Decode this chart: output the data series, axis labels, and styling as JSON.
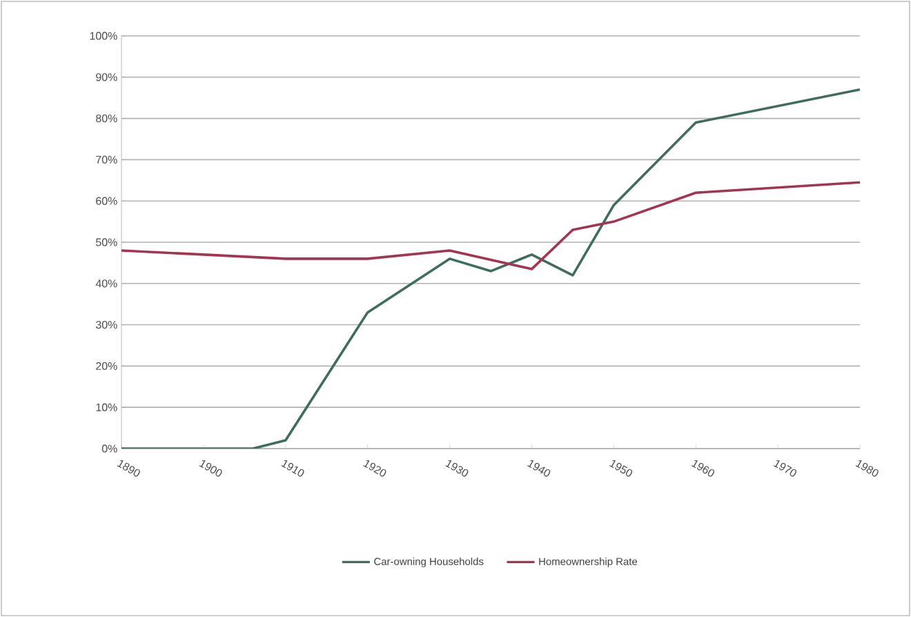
{
  "chart_data": {
    "type": "line",
    "xlim": [
      1890,
      1980
    ],
    "xticks": [
      1890,
      1900,
      1910,
      1920,
      1930,
      1940,
      1950,
      1960,
      1970,
      1980
    ],
    "ylim": [
      0,
      100
    ],
    "yticks": [
      {
        "value": 0,
        "label": "0%"
      },
      {
        "value": 10,
        "label": "10%"
      },
      {
        "value": 20,
        "label": "20%"
      },
      {
        "value": 30,
        "label": "30%"
      },
      {
        "value": 40,
        "label": "40%"
      },
      {
        "value": 50,
        "label": "50%"
      },
      {
        "value": 60,
        "label": "60%"
      },
      {
        "value": 70,
        "label": "70%"
      },
      {
        "value": 80,
        "label": "80%"
      },
      {
        "value": 90,
        "label": "90%"
      },
      {
        "value": 100,
        "label": "100%"
      }
    ],
    "grid": "y",
    "legend": "bottom",
    "marker": "none",
    "line_style": "solid",
    "series": [
      {
        "name": "Car-owning Households",
        "color": "#3f6b60",
        "x": [
          1890,
          1906,
          1910,
          1920,
          1930,
          1935,
          1940,
          1945,
          1950,
          1960,
          1980
        ],
        "values": [
          0,
          0,
          2,
          33,
          46,
          43,
          47,
          42,
          59,
          79,
          87
        ]
      },
      {
        "name": "Homeownership Rate",
        "color": "#a33550",
        "x": [
          1890,
          1900,
          1910,
          1920,
          1930,
          1940,
          1945,
          1950,
          1960,
          1980
        ],
        "values": [
          48,
          47,
          46,
          46,
          48,
          43.5,
          53,
          55,
          62,
          64.5
        ]
      }
    ]
  }
}
